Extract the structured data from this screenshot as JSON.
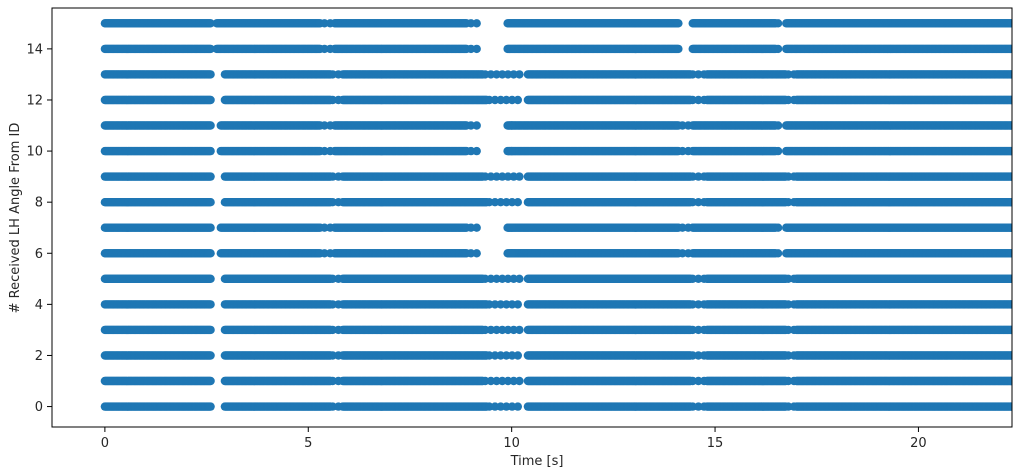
{
  "chart_data": {
    "type": "scatter",
    "title": "",
    "xlabel": "Time [s]",
    "ylabel": "# Received LH Angle From ID",
    "xlim": [
      -1.3,
      22.3
    ],
    "ylim": [
      -0.8,
      15.6
    ],
    "xticks": [
      0,
      5,
      10,
      15,
      20
    ],
    "xtick_labels": [
      "0",
      "5",
      "10",
      "15",
      "20"
    ],
    "yticks": [
      0,
      2,
      4,
      6,
      8,
      10,
      12,
      14
    ],
    "ytick_labels": [
      "0",
      "2",
      "4",
      "6",
      "8",
      "10",
      "12",
      "14"
    ],
    "grid": false,
    "marker_color": "#1f77b4",
    "series": [
      {
        "ids": [
          0,
          2,
          4,
          8,
          12
        ],
        "segments": [
          [
            0.0,
            2.6
          ],
          [
            2.95,
            5.55
          ],
          [
            5.85,
            9.4
          ],
          [
            10.4,
            14.4
          ],
          [
            14.8,
            16.75
          ],
          [
            17.0,
            22.3
          ]
        ],
        "sparse": [
          [
            5.6,
            5.8
          ],
          [
            9.45,
            10.25
          ],
          [
            14.45,
            14.75
          ],
          [
            16.8,
            16.95
          ]
        ]
      },
      {
        "ids": [
          1,
          3,
          5,
          9,
          13
        ],
        "segments": [
          [
            0.0,
            2.6
          ],
          [
            2.95,
            5.55
          ],
          [
            5.85,
            9.3
          ],
          [
            10.4,
            14.4
          ],
          [
            14.8,
            16.75
          ],
          [
            17.0,
            22.3
          ]
        ],
        "sparse": [
          [
            5.6,
            5.8
          ],
          [
            9.35,
            10.2
          ],
          [
            14.45,
            14.75
          ],
          [
            16.8,
            16.95
          ]
        ]
      },
      {
        "ids": [
          6,
          7,
          10,
          11
        ],
        "segments": [
          [
            0.0,
            2.6
          ],
          [
            2.85,
            5.3
          ],
          [
            5.65,
            8.9
          ],
          [
            9.9,
            14.1
          ],
          [
            14.45,
            16.5
          ],
          [
            16.75,
            22.3
          ]
        ],
        "sparse": [
          [
            5.4,
            5.55
          ],
          [
            9.0,
            9.2
          ],
          [
            10.0,
            10.1
          ],
          [
            14.2,
            14.35
          ],
          [
            16.55,
            16.65
          ]
        ]
      },
      {
        "ids": [
          14,
          15
        ],
        "segments": [
          [
            0.0,
            2.6
          ],
          [
            2.75,
            5.3
          ],
          [
            5.65,
            8.9
          ],
          [
            9.9,
            14.1
          ],
          [
            14.45,
            16.5
          ],
          [
            16.75,
            22.3
          ]
        ],
        "sparse": [
          [
            5.4,
            5.55
          ],
          [
            9.0,
            9.2
          ],
          [
            16.55,
            16.65
          ]
        ]
      }
    ]
  }
}
